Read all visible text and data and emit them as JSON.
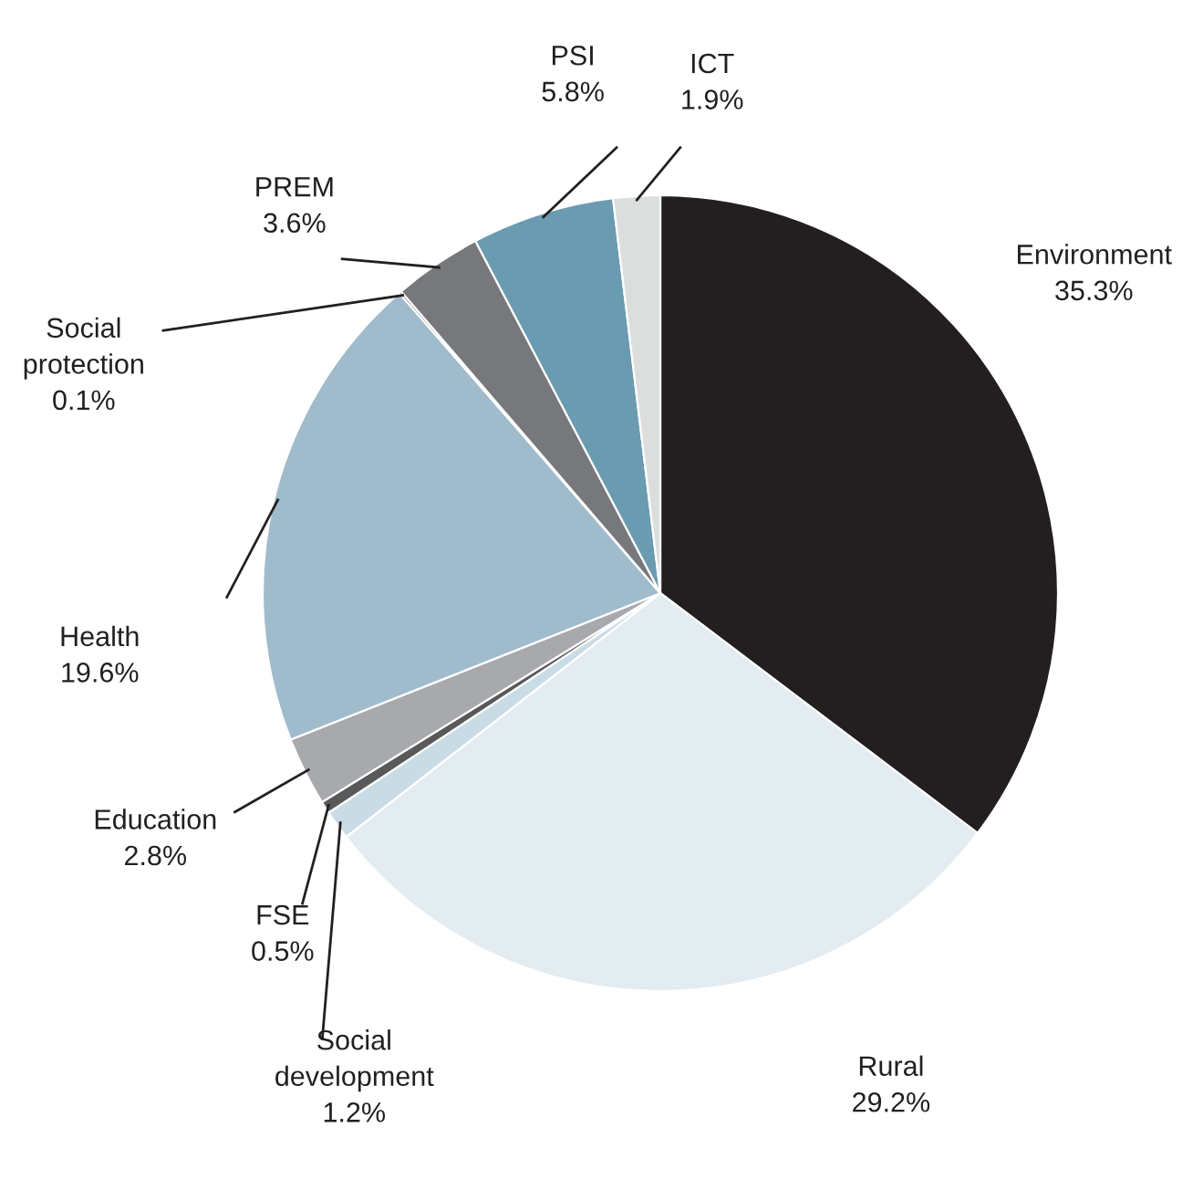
{
  "chart_data": {
    "type": "pie",
    "categories": [
      "Environment",
      "Rural",
      "Social\ndevelopment",
      "FSE",
      "Education",
      "Health",
      "Social\nprotection",
      "PREM",
      "PSI",
      "ICT"
    ],
    "values": [
      35.3,
      29.2,
      1.2,
      0.5,
      2.8,
      19.6,
      0.1,
      3.6,
      5.8,
      1.9
    ],
    "value_labels": [
      "35.3%",
      "29.2%",
      "1.2%",
      "0.5%",
      "2.8%",
      "19.6%",
      "0.1%",
      "3.6%",
      "5.8%",
      "1.9%"
    ],
    "colors": [
      "#231f20",
      "#e3ecf0",
      "#c9dce6",
      "#58595b",
      "#a7a9ac",
      "#a0bccc",
      "#3a3a3c",
      "#77787b",
      "#6a9bb0",
      "#dcdddd"
    ]
  }
}
